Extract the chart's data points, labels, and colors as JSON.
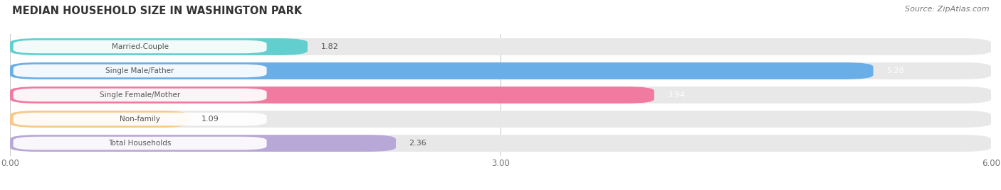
{
  "title": "MEDIAN HOUSEHOLD SIZE IN WASHINGTON PARK",
  "source": "Source: ZipAtlas.com",
  "categories": [
    "Married-Couple",
    "Single Male/Father",
    "Single Female/Mother",
    "Non-family",
    "Total Households"
  ],
  "values": [
    1.82,
    5.28,
    3.94,
    1.09,
    2.36
  ],
  "bar_colors": [
    "#62cece",
    "#6aaee8",
    "#f07aa0",
    "#f5c98a",
    "#b8a8d8"
  ],
  "bar_bg_color": "#e8e8e8",
  "label_text_colors": [
    "#555555",
    "#555555",
    "#555555",
    "#555555",
    "#555555"
  ],
  "value_colors": [
    "#555555",
    "#ffffff",
    "#ffffff",
    "#555555",
    "#555555"
  ],
  "xlim": [
    0,
    6.0
  ],
  "xticks": [
    0.0,
    3.0,
    6.0
  ],
  "xtick_labels": [
    "0.00",
    "3.00",
    "6.00"
  ],
  "figsize": [
    14.06,
    2.68
  ],
  "dpi": 100,
  "bg_color": "#ffffff"
}
